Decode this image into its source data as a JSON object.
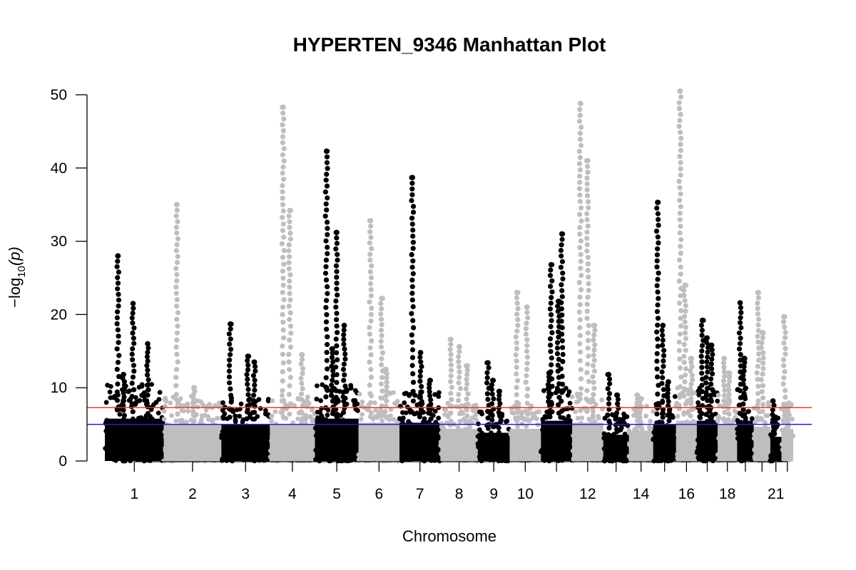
{
  "chart_data": {
    "type": "scatter",
    "title": "HYPERTEN_9346 Manhattan Plot",
    "xlabel": "Chromosome",
    "ylabel_main": "−log",
    "ylabel_sub": "10",
    "ylabel_arg": "(p)",
    "ylim": [
      0,
      50
    ],
    "y_ticks": [
      0,
      10,
      20,
      30,
      40,
      50
    ],
    "x_tick_labels": [
      "1",
      "2",
      "3",
      "4",
      "5",
      "6",
      "7",
      "8",
      "9",
      "10",
      "12",
      "14",
      "16",
      "18",
      "21"
    ],
    "point_colors": [
      "#000000",
      "#bebebe"
    ],
    "threshold_lines": [
      {
        "value": 7.3,
        "color": "#e8362f"
      },
      {
        "value": 5.0,
        "color": "#1f1fd6"
      }
    ],
    "chromosomes": [
      {
        "chr": "1",
        "base_max": 10.5,
        "peaks": [
          28.0,
          21.5,
          16.0,
          11.8
        ]
      },
      {
        "chr": "2",
        "base_max": 9.0,
        "peaks": [
          35.0,
          10.0
        ]
      },
      {
        "chr": "3",
        "base_max": 9.0,
        "peaks": [
          18.7,
          14.3,
          13.5
        ]
      },
      {
        "chr": "4",
        "base_max": 9.0,
        "peaks": [
          48.3,
          34.2,
          14.5
        ]
      },
      {
        "chr": "5",
        "base_max": 10.5,
        "peaks": [
          42.3,
          31.2,
          18.5,
          15.3
        ]
      },
      {
        "chr": "6",
        "base_max": 9.5,
        "peaks": [
          32.8,
          22.2,
          12.5
        ]
      },
      {
        "chr": "7",
        "base_max": 9.5,
        "peaks": [
          38.7,
          14.8,
          11.0
        ]
      },
      {
        "chr": "8",
        "base_max": 8.0,
        "peaks": [
          16.6,
          15.6,
          13.0
        ]
      },
      {
        "chr": "9",
        "base_max": 7.0,
        "peaks": [
          13.4,
          11.0,
          9.5
        ]
      },
      {
        "chr": "10",
        "base_max": 8.0,
        "peaks": [
          23.0,
          21.0
        ]
      },
      {
        "chr": "11",
        "base_max": 10.0,
        "peaks": [
          26.8,
          21.8,
          31.0,
          12.0
        ]
      },
      {
        "chr": "12",
        "base_max": 9.5,
        "peaks": [
          48.8,
          41.0,
          18.5
        ]
      },
      {
        "chr": "13",
        "base_max": 6.5,
        "peaks": [
          11.8,
          9.0
        ]
      },
      {
        "chr": "14",
        "base_max": 7.5,
        "peaks": [
          9.0,
          8.5
        ]
      },
      {
        "chr": "15",
        "base_max": 9.0,
        "peaks": [
          35.3,
          18.5,
          10.8
        ]
      },
      {
        "chr": "16",
        "base_max": 10.0,
        "peaks": [
          50.5,
          24.0,
          14.0
        ]
      },
      {
        "chr": "17",
        "base_max": 10.0,
        "peaks": [
          19.2,
          16.8,
          15.8
        ]
      },
      {
        "chr": "18",
        "base_max": 9.0,
        "peaks": [
          14.0,
          12.0
        ]
      },
      {
        "chr": "19",
        "base_max": 10.0,
        "peaks": [
          21.6,
          14.0
        ]
      },
      {
        "chr": "20",
        "base_max": 8.5,
        "peaks": [
          23.0,
          17.5
        ]
      },
      {
        "chr": "21",
        "base_max": 6.0,
        "peaks": [
          8.2,
          6.0
        ]
      },
      {
        "chr": "22",
        "base_max": 8.0,
        "peaks": [
          19.7,
          7.0
        ]
      }
    ]
  }
}
